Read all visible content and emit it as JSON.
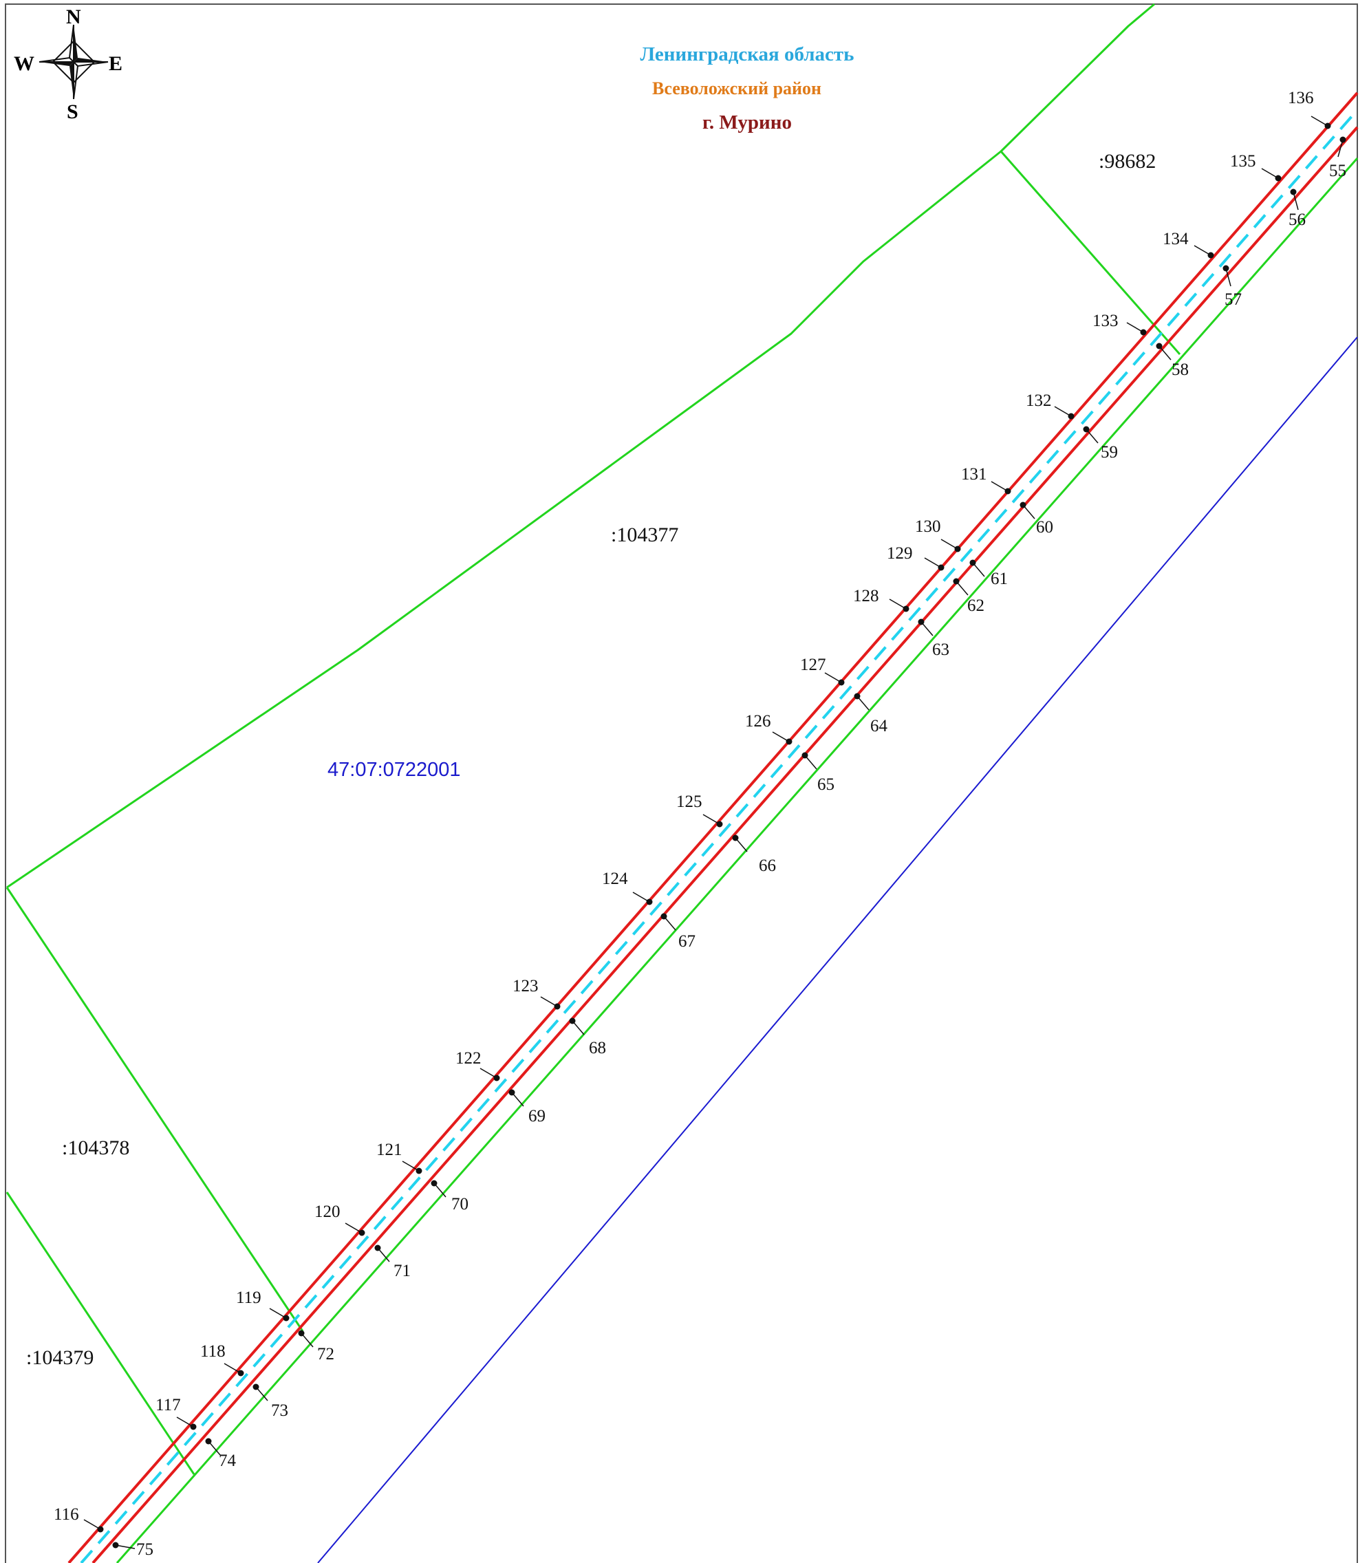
{
  "header": {
    "region": "Ленинградская область",
    "district": "Всеволожский район",
    "town": "г. Мурино"
  },
  "compass": {
    "north": "N",
    "south": "S",
    "east": "E",
    "west": "W"
  },
  "colors": {
    "region": "#2aa7dc",
    "district": "#e07b19",
    "town": "#8b1a1a",
    "parcel_boundary": "#22d41e",
    "road_edge": "#e41b1b",
    "centerline": "#22d3ee",
    "block_boundary": "#1a1ad0",
    "block_label": "#1a1acc"
  },
  "labels": {
    "block_number": "47:07:0722001",
    "parcels": [
      ":98682",
      ":104377",
      ":104378",
      ":104379"
    ]
  },
  "boundary_points": {
    "north_edge": [
      "116",
      "117",
      "118",
      "119",
      "120",
      "121",
      "122",
      "123",
      "124",
      "125",
      "126",
      "127",
      "128",
      "129",
      "130",
      "131",
      "132",
      "133",
      "134",
      "135",
      "136"
    ],
    "south_edge": [
      "75",
      "74",
      "73",
      "72",
      "71",
      "70",
      "69",
      "68",
      "67",
      "66",
      "65",
      "64",
      "63",
      "62",
      "61",
      "60",
      "59",
      "58",
      "57",
      "56",
      "55"
    ]
  }
}
